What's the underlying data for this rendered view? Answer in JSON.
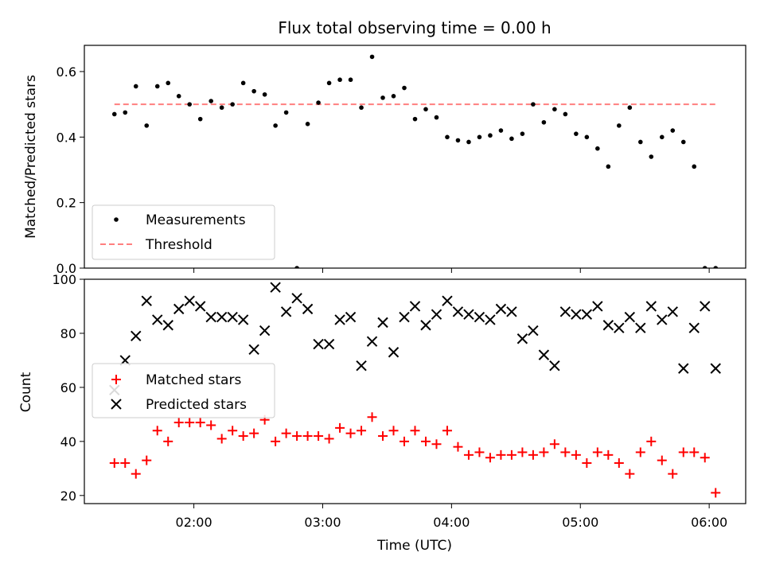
{
  "chart_data": [
    {
      "type": "scatter",
      "title": "Flux total observing time = 0.00 h",
      "ylabel": "Matched/Predicted stars",
      "xlim": [
        "01:09",
        "06:17"
      ],
      "ylim": [
        0,
        0.68
      ],
      "yticks": [
        "0.0",
        "0.2",
        "0.4",
        "0.6"
      ],
      "grid": false,
      "legend": {
        "placement": "lower-left",
        "entries": [
          "Measurements",
          "Threshold"
        ]
      },
      "threshold": {
        "name": "Threshold",
        "y": 0.5,
        "x_from": "01:23",
        "x_to": "06:04",
        "color": "#ff7f7f"
      },
      "series": [
        {
          "name": "Measurements",
          "color": "#000000",
          "x": [
            "01:23",
            "01:28",
            "01:33",
            "01:38",
            "01:43",
            "01:48",
            "01:53",
            "01:58",
            "02:03",
            "02:08",
            "02:13",
            "02:18",
            "02:23",
            "02:28",
            "02:33",
            "02:38",
            "02:43",
            "02:48",
            "02:53",
            "02:58",
            "03:03",
            "03:08",
            "03:13",
            "03:18",
            "03:23",
            "03:28",
            "03:33",
            "03:38",
            "03:43",
            "03:48",
            "03:53",
            "03:58",
            "04:03",
            "04:08",
            "04:13",
            "04:18",
            "04:23",
            "04:28",
            "04:33",
            "04:38",
            "04:43",
            "04:48",
            "04:53",
            "04:58",
            "05:03",
            "05:08",
            "05:13",
            "05:18",
            "05:23",
            "05:28",
            "05:33",
            "05:38",
            "05:43",
            "05:48",
            "05:53",
            "05:58",
            "06:03"
          ],
          "y": [
            0.47,
            0.475,
            0.555,
            0.435,
            0.555,
            0.565,
            0.525,
            0.5,
            0.455,
            0.51,
            0.49,
            0.5,
            0.565,
            0.54,
            0.53,
            0.435,
            0.475,
            0.0,
            0.44,
            0.505,
            0.565,
            0.575,
            0.575,
            0.49,
            0.645,
            0.52,
            0.525,
            0.55,
            0.455,
            0.485,
            0.46,
            0.4,
            0.39,
            0.385,
            0.4,
            0.405,
            0.42,
            0.395,
            0.41,
            0.5,
            0.445,
            0.485,
            0.47,
            0.41,
            0.4,
            0.365,
            0.31,
            0.435,
            0.49,
            0.385,
            0.34,
            0.4,
            0.42,
            0.385,
            0.31,
            0.0,
            0.0
          ]
        }
      ]
    },
    {
      "type": "scatter",
      "xlabel": "Time (UTC)",
      "ylabel": "Count",
      "xlim": [
        "01:09",
        "06:17"
      ],
      "ylim": [
        17,
        100
      ],
      "xticks": [
        "02:00",
        "03:00",
        "04:00",
        "05:00",
        "06:00"
      ],
      "yticks": [
        "20",
        "40",
        "60",
        "80",
        "100"
      ],
      "grid": false,
      "legend": {
        "placement": "center-left",
        "entries": [
          "Matched stars",
          "Predicted stars"
        ]
      },
      "series": [
        {
          "name": "Matched stars",
          "marker": "plus",
          "color": "#ff0000",
          "x": [
            "01:23",
            "01:28",
            "01:33",
            "01:38",
            "01:43",
            "01:48",
            "01:53",
            "01:58",
            "02:03",
            "02:08",
            "02:13",
            "02:18",
            "02:23",
            "02:28",
            "02:33",
            "02:38",
            "02:43",
            "02:48",
            "02:53",
            "02:58",
            "03:03",
            "03:08",
            "03:13",
            "03:18",
            "03:23",
            "03:28",
            "03:33",
            "03:38",
            "03:43",
            "03:48",
            "03:53",
            "03:58",
            "04:03",
            "04:08",
            "04:13",
            "04:18",
            "04:23",
            "04:28",
            "04:33",
            "04:38",
            "04:43",
            "04:48",
            "04:53",
            "04:58",
            "05:03",
            "05:08",
            "05:13",
            "05:18",
            "05:23",
            "05:28",
            "05:33",
            "05:38",
            "05:43",
            "05:48",
            "05:53",
            "05:58",
            "06:03"
          ],
          "y": [
            32,
            32,
            28,
            33,
            44,
            40,
            47,
            47,
            47,
            46,
            41,
            44,
            42,
            43,
            48,
            40,
            43,
            42,
            42,
            42,
            41,
            45,
            43,
            44,
            49,
            42,
            44,
            40,
            44,
            40,
            39,
            44,
            38,
            35,
            36,
            34,
            35,
            35,
            36,
            35,
            36,
            39,
            36,
            35,
            32,
            36,
            35,
            32,
            28,
            36,
            40,
            33,
            28,
            36,
            36,
            34,
            21
          ]
        },
        {
          "name": "Predicted stars",
          "marker": "x",
          "color": "#000000",
          "x": [
            "01:23",
            "01:28",
            "01:33",
            "01:38",
            "01:43",
            "01:48",
            "01:53",
            "01:58",
            "02:03",
            "02:08",
            "02:13",
            "02:18",
            "02:23",
            "02:28",
            "02:33",
            "02:38",
            "02:43",
            "02:48",
            "02:53",
            "02:58",
            "03:03",
            "03:08",
            "03:13",
            "03:18",
            "03:23",
            "03:28",
            "03:33",
            "03:38",
            "03:43",
            "03:48",
            "03:53",
            "03:58",
            "04:03",
            "04:08",
            "04:13",
            "04:18",
            "04:23",
            "04:28",
            "04:33",
            "04:38",
            "04:43",
            "04:48",
            "04:53",
            "04:58",
            "05:03",
            "05:08",
            "05:13",
            "05:18",
            "05:23",
            "05:28",
            "05:33",
            "05:38",
            "05:43",
            "05:48",
            "05:53",
            "05:58",
            "06:03"
          ],
          "y": [
            59,
            70,
            79,
            92,
            85,
            83,
            89,
            92,
            90,
            86,
            86,
            86,
            85,
            74,
            81,
            97,
            88,
            93,
            89,
            76,
            76,
            85,
            86,
            68,
            77,
            84,
            73,
            86,
            90,
            83,
            87,
            92,
            88,
            87,
            86,
            85,
            89,
            88,
            78,
            81,
            72,
            68,
            88,
            87,
            87,
            90,
            83,
            82,
            86,
            82,
            90,
            85,
            88,
            67,
            82,
            90,
            67
          ]
        }
      ]
    }
  ]
}
